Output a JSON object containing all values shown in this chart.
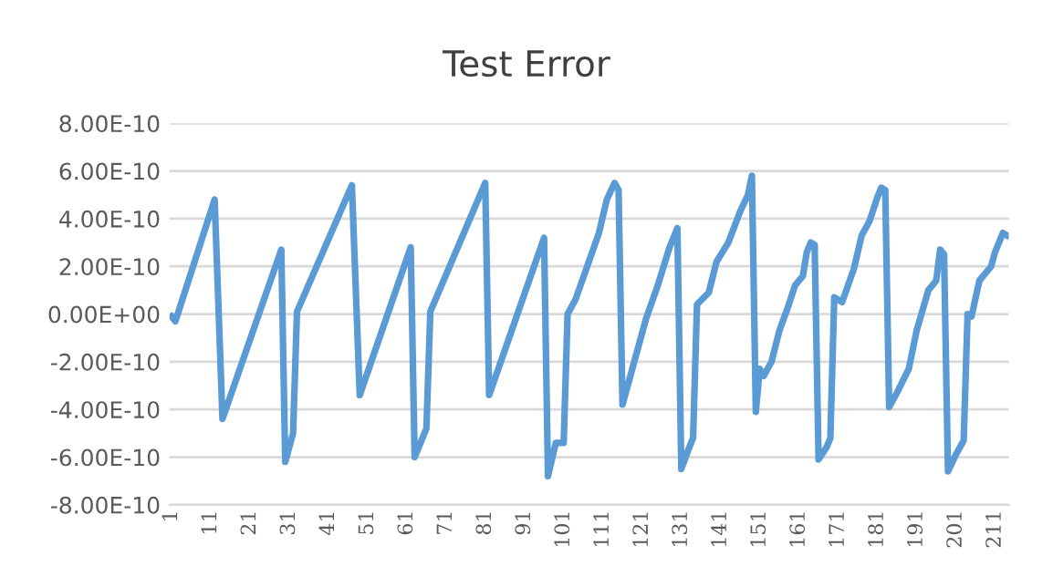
{
  "chart_data": {
    "type": "line",
    "title": "Test Error",
    "series": [
      {
        "color": "#5b9bd5",
        "x": [
          1,
          2,
          12,
          14,
          29,
          30,
          32,
          33,
          47,
          49,
          62,
          63,
          66,
          67,
          81,
          82,
          96,
          97,
          99,
          101,
          102,
          104,
          107,
          110,
          112,
          114,
          115,
          116,
          122,
          125,
          128,
          130,
          131,
          133,
          134,
          135,
          138,
          140,
          143,
          146,
          148,
          149,
          150,
          151,
          152,
          154,
          156,
          158,
          160,
          162,
          163,
          164,
          165,
          166,
          168,
          169,
          170,
          172,
          175,
          177,
          179,
          181,
          182,
          183,
          184,
          186,
          189,
          191,
          194,
          196,
          197,
          198,
          199,
          201,
          203,
          204,
          205,
          207,
          210,
          211,
          213,
          214
        ],
        "values": [
          -1e-11,
          -3e-11,
          4.8e-10,
          -4.4e-10,
          2.7e-10,
          -6.2e-10,
          -5e-10,
          1e-11,
          5.4e-10,
          -3.4e-10,
          2.8e-10,
          -6e-10,
          -4.8e-10,
          1e-11,
          5.5e-10,
          -3.4e-10,
          3.2e-10,
          -6.8e-10,
          -5.4e-10,
          -5.4e-10,
          0,
          6e-11,
          2e-10,
          3.4e-10,
          4.8e-10,
          5.5e-10,
          5.2e-10,
          -3.8e-10,
          -2e-11,
          1.2e-10,
          2.8e-10,
          3.6e-10,
          -6.5e-10,
          -5.6e-10,
          -5.2e-10,
          4e-11,
          9e-11,
          2.2e-10,
          3e-10,
          4.3e-10,
          5e-10,
          5.8e-10,
          -4.1e-10,
          -2.3e-10,
          -2.6e-10,
          -2e-10,
          -7e-11,
          2e-11,
          1.2e-10,
          1.6e-10,
          2.6e-10,
          3e-10,
          2.9e-10,
          -6.1e-10,
          -5.6e-10,
          -5.2e-10,
          7e-11,
          5e-11,
          1.9e-10,
          3.3e-10,
          3.9e-10,
          4.9e-10,
          5.3e-10,
          5.2e-10,
          -3.9e-10,
          -3.3e-10,
          -2.3e-10,
          -7e-11,
          1e-10,
          1.4e-10,
          2.7e-10,
          2.5e-10,
          -6.6e-10,
          -5.9e-10,
          -5.3e-10,
          0,
          -1e-11,
          1.4e-10,
          2e-10,
          2.6e-10,
          3.4e-10,
          3.3e-10
        ]
      }
    ],
    "xlim": [
      0.5,
      214.5
    ],
    "xticks": [
      1,
      11,
      21,
      31,
      41,
      51,
      61,
      71,
      81,
      91,
      101,
      111,
      121,
      131,
      141,
      151,
      161,
      171,
      181,
      191,
      201,
      211
    ],
    "ylim": [
      -8e-10,
      8e-10
    ],
    "yticks": [
      {
        "value": -8e-10,
        "label": "-8.00E-10"
      },
      {
        "value": -6e-10,
        "label": "-6.00E-10"
      },
      {
        "value": -4e-10,
        "label": "-4.00E-10"
      },
      {
        "value": -2e-10,
        "label": "-2.00E-10"
      },
      {
        "value": 0,
        "label": "0.00E+00"
      },
      {
        "value": 2e-10,
        "label": "2.00E-10"
      },
      {
        "value": 4e-10,
        "label": "4.00E-10"
      },
      {
        "value": 6e-10,
        "label": "6.00E-10"
      },
      {
        "value": 8e-10,
        "label": "8.00E-10"
      }
    ],
    "grid": "y",
    "line_style": "solid",
    "marker": "none",
    "legend": false
  }
}
